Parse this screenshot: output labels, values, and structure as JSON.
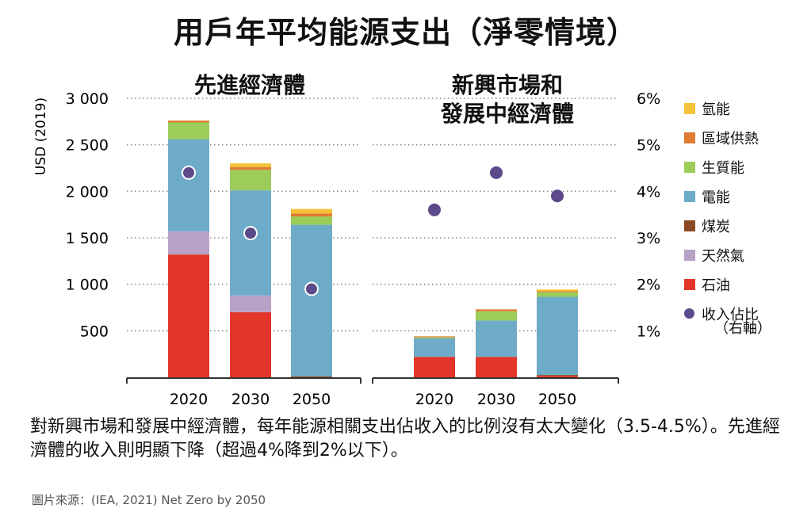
{
  "title": "用戶年平均能源支出（淨零情境）",
  "caption": "對新興市場和發展中經濟體，每年能源相關支出佔收入的比例沒有太大變化（3.5-4.5%）。先進經濟體的收入則明顯下降（超過4%降到2%以下）。",
  "source": "圖片來源：(IEA, 2021) Net Zero by 2050",
  "colors": {
    "氫能": "#f5c23a",
    "區域供熱": "#e07b33",
    "生質能": "#9ccc5a",
    "電能": "#6dabc9",
    "煤炭": "#8b4a22",
    "天然氣": "#b8a2c8",
    "石油": "#e3352a",
    "收入佔比": "#5c4a8a"
  },
  "legend": {
    "items": [
      "氫能",
      "區域供熱",
      "生質能",
      "電能",
      "煤炭",
      "天然氣",
      "石油",
      "收入佔比"
    ],
    "note": "（右軸）"
  },
  "chart_data": {
    "type": "bar",
    "stacked": true,
    "ylabel": "USD (2019)",
    "ylim": [
      0,
      3000
    ],
    "yticks": [
      500,
      1000,
      1500,
      2000,
      2500,
      3000
    ],
    "ytick_labels": [
      "500",
      "1 000",
      "1 500",
      "2 000",
      "2 500",
      "3 000"
    ],
    "y2lim": [
      0,
      6
    ],
    "y2ticks": [
      1,
      2,
      3,
      4,
      5,
      6
    ],
    "y2tick_labels": [
      "1%",
      "2%",
      "3%",
      "4%",
      "5%",
      "6%"
    ],
    "categories": [
      "2020",
      "2030",
      "2050"
    ],
    "grid": true,
    "legend_position": "right",
    "panels": [
      {
        "title": "先進經濟體",
        "series": [
          {
            "name": "石油",
            "values": [
              1320,
              700,
              0
            ]
          },
          {
            "name": "天然氣",
            "values": [
              250,
              180,
              0
            ]
          },
          {
            "name": "煤炭",
            "values": [
              0,
              0,
              10
            ]
          },
          {
            "name": "電能",
            "values": [
              990,
              1130,
              1630
            ]
          },
          {
            "name": "生質能",
            "values": [
              180,
              220,
              90
            ]
          },
          {
            "name": "區域供熱",
            "values": [
              20,
              30,
              30
            ]
          },
          {
            "name": "氫能",
            "values": [
              0,
              40,
              50
            ]
          }
        ],
        "income_share": [
          4.4,
          3.1,
          1.9
        ]
      },
      {
        "title": "新興市場和發展中經濟體",
        "series": [
          {
            "name": "石油",
            "values": [
              220,
              220,
              15
            ]
          },
          {
            "name": "天然氣",
            "values": [
              0,
              0,
              0
            ]
          },
          {
            "name": "煤炭",
            "values": [
              0,
              0,
              10
            ]
          },
          {
            "name": "電能",
            "values": [
              200,
              390,
              840
            ]
          },
          {
            "name": "生質能",
            "values": [
              10,
              100,
              50
            ]
          },
          {
            "name": "區域供熱",
            "values": [
              10,
              20,
              10
            ]
          },
          {
            "name": "氫能",
            "values": [
              0,
              0,
              20
            ]
          }
        ],
        "income_share": [
          3.6,
          4.4,
          3.9
        ]
      }
    ]
  }
}
